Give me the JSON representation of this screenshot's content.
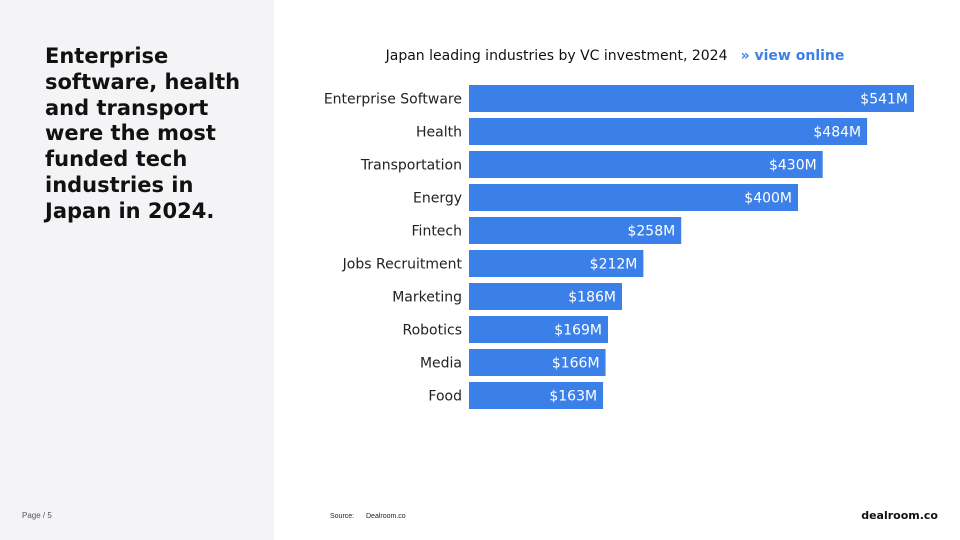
{
  "headline": "Enterprise software, health and transport were the most funded tech industries in Japan in 2024.",
  "page_label": "Page / 5",
  "chart_header": {
    "title": "Japan leading industries by VC investment, 2024",
    "link_label": "» view online"
  },
  "footer": {
    "source_label": "Source:",
    "source_value": "Dealroom.co",
    "brand": "dealroom.co"
  },
  "colors": {
    "bar": "#3b7fe8",
    "bar_label": "#ffffff",
    "category_label": "#222222",
    "accent_link": "#3b7fe8"
  },
  "chart_data": {
    "type": "bar",
    "orientation": "horizontal",
    "title": "Japan leading industries by VC investment, 2024",
    "xlabel": "",
    "ylabel": "",
    "categories": [
      "Enterprise Software",
      "Health",
      "Transportation",
      "Energy",
      "Fintech",
      "Jobs Recruitment",
      "Marketing",
      "Robotics",
      "Media",
      "Food"
    ],
    "values": [
      541,
      484,
      430,
      400,
      258,
      212,
      186,
      169,
      166,
      163
    ],
    "data_labels": [
      "$541M",
      "$484M",
      "$430M",
      "$400M",
      "$258M",
      "$212M",
      "$186M",
      "$169M",
      "$166M",
      "$163M"
    ],
    "unit": "$M",
    "xlim": [
      0,
      541
    ],
    "grid": false,
    "legend": "none"
  }
}
